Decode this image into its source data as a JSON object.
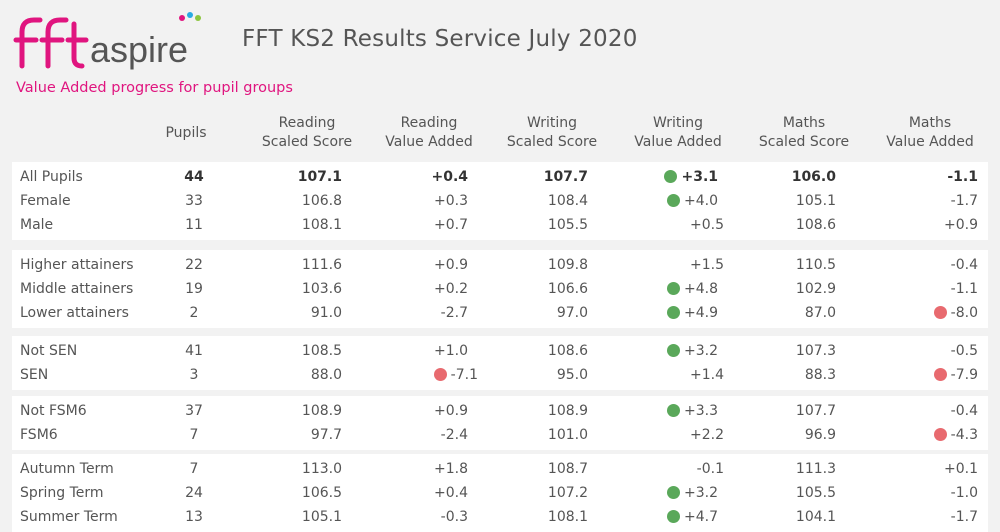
{
  "header": {
    "logo_text": "fft aspire",
    "title": "FFT KS2 Results Service July 2020"
  },
  "subtitle": "Value Added progress for pupil groups",
  "columns": [
    {
      "line1": "Pupils",
      "line2": ""
    },
    {
      "line1": "Reading",
      "line2": "Scaled Score"
    },
    {
      "line1": "Reading",
      "line2": "Value Added"
    },
    {
      "line1": "Writing",
      "line2": "Scaled Score"
    },
    {
      "line1": "Writing",
      "line2": "Value Added"
    },
    {
      "line1": "Maths",
      "line2": "Scaled Score"
    },
    {
      "line1": "Maths",
      "line2": "Value Added"
    }
  ],
  "colors": {
    "green_indicator": "#5aa85a",
    "red_indicator": "#e86a6f",
    "accent": "#e0157f"
  },
  "groups": [
    {
      "rows": [
        {
          "label": "All Pupils",
          "pupils": "44",
          "rss": "107.1",
          "rva": "+0.4",
          "rva_dot": "",
          "wss": "107.7",
          "wva": "+3.1",
          "wva_dot": "green",
          "mss": "106.0",
          "mva": "-1.1",
          "mva_dot": "",
          "bold": true
        },
        {
          "label": "Female",
          "pupils": "33",
          "rss": "106.8",
          "rva": "+0.3",
          "rva_dot": "",
          "wss": "108.4",
          "wva": "+4.0",
          "wva_dot": "green",
          "mss": "105.1",
          "mva": "-1.7",
          "mva_dot": ""
        },
        {
          "label": "Male",
          "pupils": "11",
          "rss": "108.1",
          "rva": "+0.7",
          "rva_dot": "",
          "wss": "105.5",
          "wva": "+0.5",
          "wva_dot": "",
          "mss": "108.6",
          "mva": "+0.9",
          "mva_dot": ""
        }
      ]
    },
    {
      "rows": [
        {
          "label": "Higher attainers",
          "pupils": "22",
          "rss": "111.6",
          "rva": "+0.9",
          "rva_dot": "",
          "wss": "109.8",
          "wva": "+1.5",
          "wva_dot": "",
          "mss": "110.5",
          "mva": "-0.4",
          "mva_dot": ""
        },
        {
          "label": "Middle attainers",
          "pupils": "19",
          "rss": "103.6",
          "rva": "+0.2",
          "rva_dot": "",
          "wss": "106.6",
          "wva": "+4.8",
          "wva_dot": "green",
          "mss": "102.9",
          "mva": "-1.1",
          "mva_dot": ""
        },
        {
          "label": "Lower attainers",
          "pupils": "2",
          "rss": "91.0",
          "rva": "-2.7",
          "rva_dot": "",
          "wss": "97.0",
          "wva": "+4.9",
          "wva_dot": "green",
          "mss": "87.0",
          "mva": "-8.0",
          "mva_dot": "red"
        }
      ]
    },
    {
      "rows": [
        {
          "label": "Not SEN",
          "pupils": "41",
          "rss": "108.5",
          "rva": "+1.0",
          "rva_dot": "",
          "wss": "108.6",
          "wva": "+3.2",
          "wva_dot": "green",
          "mss": "107.3",
          "mva": "-0.5",
          "mva_dot": ""
        },
        {
          "label": "SEN",
          "pupils": "3",
          "rss": "88.0",
          "rva": "-7.1",
          "rva_dot": "red",
          "wss": "95.0",
          "wva": "+1.4",
          "wva_dot": "",
          "mss": "88.3",
          "mva": "-7.9",
          "mva_dot": "red"
        }
      ]
    },
    {
      "rows": [
        {
          "label": "Not FSM6",
          "pupils": "37",
          "rss": "108.9",
          "rva": "+0.9",
          "rva_dot": "",
          "wss": "108.9",
          "wva": "+3.3",
          "wva_dot": "green",
          "mss": "107.7",
          "mva": "-0.4",
          "mva_dot": ""
        },
        {
          "label": "FSM6",
          "pupils": "7",
          "rss": "97.7",
          "rva": "-2.4",
          "rva_dot": "",
          "wss": "101.0",
          "wva": "+2.2",
          "wva_dot": "",
          "mss": "96.9",
          "mva": "-4.3",
          "mva_dot": "red"
        }
      ]
    },
    {
      "rows": [
        {
          "label": "Autumn Term",
          "pupils": "7",
          "rss": "113.0",
          "rva": "+1.8",
          "rva_dot": "",
          "wss": "108.7",
          "wva": "-0.1",
          "wva_dot": "",
          "mss": "111.3",
          "mva": "+0.1",
          "mva_dot": ""
        },
        {
          "label": "Spring Term",
          "pupils": "24",
          "rss": "106.5",
          "rva": "+0.4",
          "rva_dot": "",
          "wss": "107.2",
          "wva": "+3.2",
          "wva_dot": "green",
          "mss": "105.5",
          "mva": "-1.0",
          "mva_dot": ""
        },
        {
          "label": "Summer Term",
          "pupils": "13",
          "rss": "105.1",
          "rva": "-0.3",
          "rva_dot": "",
          "wss": "108.1",
          "wva": "+4.7",
          "wva_dot": "green",
          "mss": "104.1",
          "mva": "-1.7",
          "mva_dot": ""
        }
      ]
    }
  ]
}
